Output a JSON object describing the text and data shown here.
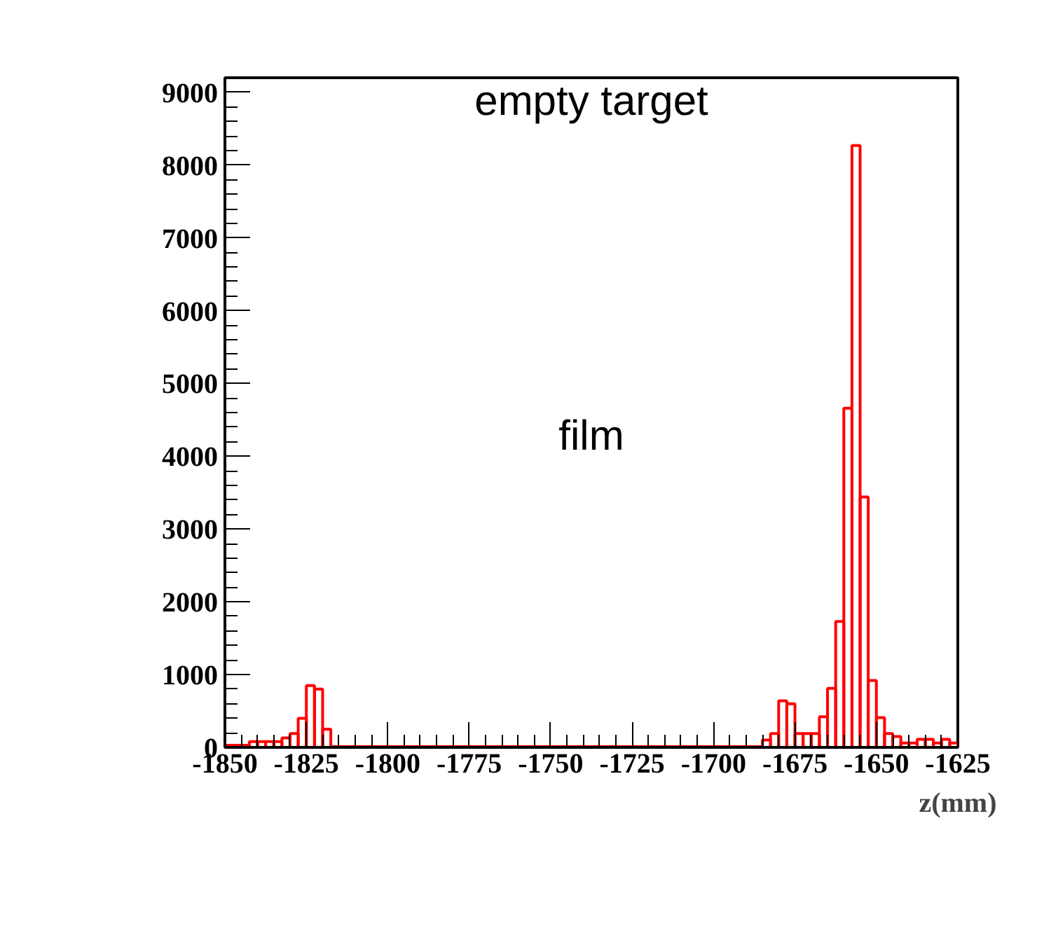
{
  "chart_data": {
    "type": "histogram",
    "xlabel": "z(mm)",
    "bins": [
      -1850,
      -1847.5,
      -1845,
      -1842.5,
      -1840,
      -1837.5,
      -1835,
      -1832.5,
      -1830,
      -1827.5,
      -1825,
      -1822.5,
      -1820,
      -1817.5,
      -1815,
      -1812.5,
      -1810,
      -1807.5,
      -1805,
      -1802.5,
      -1800,
      -1797.5,
      -1795,
      -1792.5,
      -1790,
      -1787.5,
      -1785,
      -1782.5,
      -1780,
      -1777.5,
      -1775,
      -1772.5,
      -1770,
      -1767.5,
      -1765,
      -1762.5,
      -1760,
      -1757.5,
      -1755,
      -1752.5,
      -1750,
      -1747.5,
      -1745,
      -1742.5,
      -1740,
      -1737.5,
      -1735,
      -1732.5,
      -1730,
      -1727.5,
      -1725,
      -1722.5,
      -1720,
      -1717.5,
      -1715,
      -1712.5,
      -1710,
      -1707.5,
      -1705,
      -1702.5,
      -1700,
      -1697.5,
      -1695,
      -1692.5,
      -1690,
      -1687.5,
      -1685,
      -1682.5,
      -1680,
      -1677.5,
      -1675,
      -1672.5,
      -1670,
      -1667.5,
      -1665,
      -1662.5,
      -1660,
      -1657.5,
      -1655,
      -1652.5,
      -1650,
      -1647.5,
      -1645,
      -1642.5,
      -1640,
      -1637.5,
      -1635,
      -1632.5,
      -1630,
      -1627.5,
      -1625
    ],
    "values": [
      30,
      30,
      30,
      80,
      80,
      80,
      80,
      130,
      190,
      400,
      850,
      800,
      250,
      10,
      10,
      10,
      10,
      10,
      10,
      10,
      10,
      10,
      10,
      10,
      10,
      10,
      10,
      10,
      10,
      10,
      10,
      10,
      10,
      10,
      10,
      10,
      10,
      10,
      10,
      10,
      10,
      10,
      10,
      10,
      10,
      10,
      10,
      10,
      10,
      10,
      10,
      10,
      10,
      10,
      10,
      10,
      10,
      10,
      10,
      10,
      10,
      10,
      10,
      10,
      10,
      10,
      100,
      190,
      640,
      600,
      190,
      190,
      190,
      420,
      810,
      1730,
      4660,
      8270,
      3440,
      920,
      410,
      190,
      150,
      60,
      60,
      110,
      110,
      60,
      110,
      60
    ],
    "color": "#ff0000",
    "xlim": [
      -1850,
      -1625
    ],
    "xticks": [
      -1850,
      -1825,
      -1800,
      -1775,
      -1750,
      -1725,
      -1700,
      -1675,
      -1650,
      -1625
    ],
    "ylim": [
      0,
      9200
    ],
    "yticks": [
      0,
      1000,
      2000,
      3000,
      4000,
      5000,
      6000,
      7000,
      8000,
      9000
    ],
    "grid": false,
    "annotations": [
      "empty target",
      "film"
    ]
  }
}
